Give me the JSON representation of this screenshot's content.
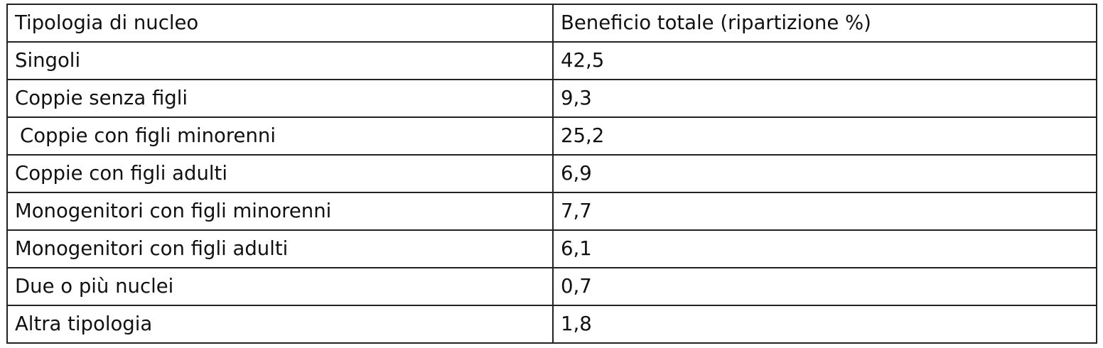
{
  "table": {
    "headers": [
      "Tipologia di nucleo",
      "Beneficio totale (ripartizione %)"
    ],
    "rows": [
      [
        "Singoli",
        "42,5"
      ],
      [
        "Coppie senza figli",
        "9,3"
      ],
      [
        "Coppie con figli minorenni",
        "25,2"
      ],
      [
        "Coppie con figli adulti",
        "6,9"
      ],
      [
        "Monogenitori con figli minorenni",
        "7,7"
      ],
      [
        "Monogenitori con figli adulti",
        "6,1"
      ],
      [
        "Due o più nuclei",
        "0,7"
      ],
      [
        "Altra tipologia",
        "1,8"
      ]
    ]
  }
}
